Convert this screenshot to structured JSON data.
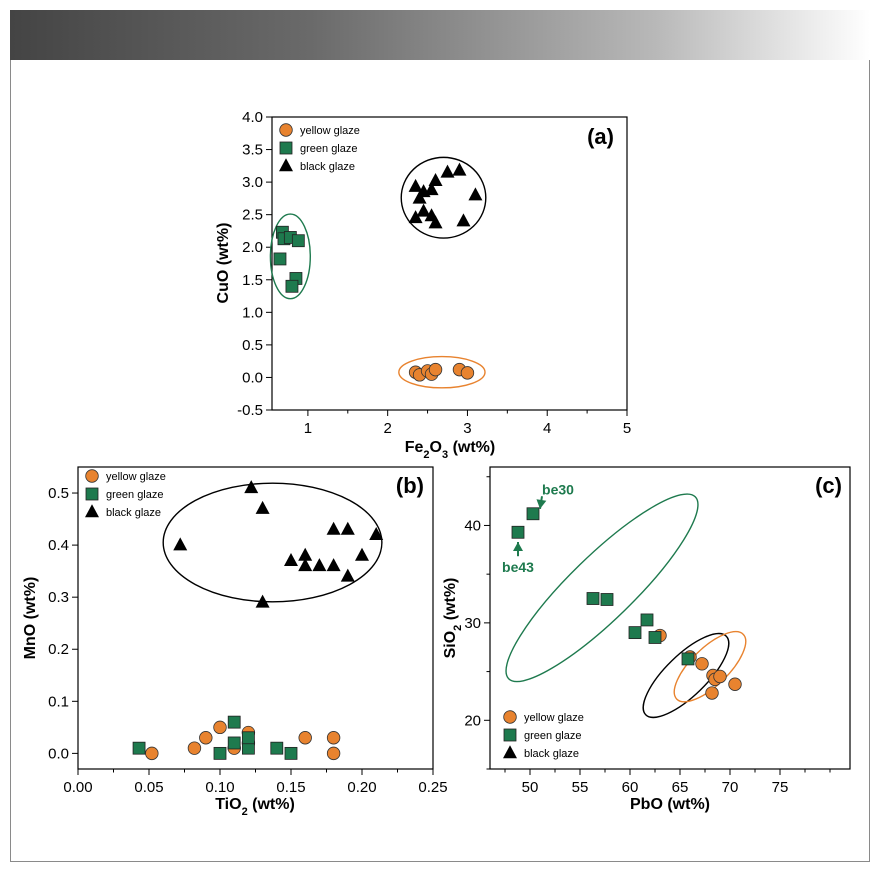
{
  "colors": {
    "yellow": "#e8832f",
    "green": "#1e7a4e",
    "black": "#000000",
    "banner_dark": "#444444"
  },
  "legend": [
    "yellow glaze",
    "green glaze",
    "black glaze"
  ],
  "chart_data": [
    {
      "id": "a",
      "type": "scatter",
      "panel_label": "(a)",
      "xlabel_main": "Fe",
      "xlabel_sub": "2",
      "xlabel_main2": "O",
      "xlabel_sub2": "3",
      "xlabel_tail": " (wt%)",
      "ylabel": "CuO (wt%)",
      "xlim": [
        0.55,
        5.0
      ],
      "ylim": [
        -0.5,
        4.0
      ],
      "xticks": [
        1,
        2,
        3,
        4,
        5
      ],
      "yticks": [
        -0.5,
        0.0,
        0.5,
        1.0,
        1.5,
        2.0,
        2.5,
        3.0,
        3.5,
        4.0
      ],
      "x_minor": 0.5,
      "ytick_decimals": 1,
      "legend_position": "top-left",
      "series": [
        {
          "name": "yellow glaze",
          "marker": "circle",
          "color": "yellow",
          "points": [
            [
              2.35,
              0.08
            ],
            [
              2.4,
              0.04
            ],
            [
              2.5,
              0.1
            ],
            [
              2.55,
              0.05
            ],
            [
              2.6,
              0.12
            ],
            [
              2.9,
              0.12
            ],
            [
              3.0,
              0.07
            ]
          ]
        },
        {
          "name": "green glaze",
          "marker": "square",
          "color": "green",
          "points": [
            [
              0.68,
              2.23
            ],
            [
              0.7,
              2.13
            ],
            [
              0.78,
              2.15
            ],
            [
              0.88,
              2.1
            ],
            [
              0.65,
              1.82
            ],
            [
              0.85,
              1.52
            ],
            [
              0.8,
              1.4
            ]
          ]
        },
        {
          "name": "black glaze",
          "marker": "triangle",
          "color": "black",
          "points": [
            [
              2.35,
              2.93
            ],
            [
              2.45,
              2.85
            ],
            [
              2.6,
              3.02
            ],
            [
              2.75,
              3.15
            ],
            [
              2.9,
              3.18
            ],
            [
              2.55,
              2.88
            ],
            [
              2.4,
              2.75
            ],
            [
              3.1,
              2.8
            ],
            [
              2.35,
              2.45
            ],
            [
              2.45,
              2.55
            ],
            [
              2.55,
              2.48
            ],
            [
              2.6,
              2.37
            ],
            [
              2.95,
              2.4
            ]
          ]
        }
      ],
      "ellipses": [
        {
          "color": "green",
          "cx": 0.78,
          "cy": 1.86,
          "rx": 0.25,
          "ry": 0.65,
          "angle": 0
        },
        {
          "color": "black",
          "cx": 2.7,
          "cy": 2.76,
          "rx": 0.53,
          "ry": 0.62,
          "angle": 0
        },
        {
          "color": "orange",
          "cx": 2.68,
          "cy": 0.08,
          "rx": 0.54,
          "ry": 0.24,
          "angle": 0
        }
      ],
      "annotations": []
    },
    {
      "id": "b",
      "type": "scatter",
      "panel_label": "(b)",
      "xlabel_main": "TiO",
      "xlabel_sub": "2",
      "xlabel_tail": " (wt%)",
      "ylabel": "MnO (wt%)",
      "xlim": [
        0.0,
        0.25
      ],
      "ylim": [
        -0.03,
        0.55
      ],
      "xticks": [
        0.0,
        0.05,
        0.1,
        0.15,
        0.2,
        0.25
      ],
      "yticks": [
        0.0,
        0.1,
        0.2,
        0.3,
        0.4,
        0.5
      ],
      "x_minor": 0.025,
      "xtick_decimals": 2,
      "ytick_decimals": 1,
      "legend_position": "top-left",
      "series": [
        {
          "name": "yellow glaze",
          "marker": "circle",
          "color": "yellow",
          "points": [
            [
              0.052,
              0.0
            ],
            [
              0.082,
              0.01
            ],
            [
              0.09,
              0.03
            ],
            [
              0.1,
              0.05
            ],
            [
              0.11,
              0.01
            ],
            [
              0.12,
              0.04
            ],
            [
              0.12,
              0.02
            ],
            [
              0.16,
              0.03
            ],
            [
              0.18,
              0.03
            ],
            [
              0.18,
              0.0
            ]
          ]
        },
        {
          "name": "green glaze",
          "marker": "square",
          "color": "green",
          "points": [
            [
              0.043,
              0.01
            ],
            [
              0.1,
              0.0
            ],
            [
              0.11,
              0.06
            ],
            [
              0.11,
              0.02
            ],
            [
              0.12,
              0.01
            ],
            [
              0.12,
              0.03
            ],
            [
              0.14,
              0.01
            ],
            [
              0.15,
              0.0
            ]
          ]
        },
        {
          "name": "black glaze",
          "marker": "triangle",
          "color": "black",
          "points": [
            [
              0.072,
              0.4
            ],
            [
              0.122,
              0.51
            ],
            [
              0.13,
              0.47
            ],
            [
              0.13,
              0.29
            ],
            [
              0.15,
              0.37
            ],
            [
              0.16,
              0.38
            ],
            [
              0.16,
              0.36
            ],
            [
              0.17,
              0.36
            ],
            [
              0.18,
              0.36
            ],
            [
              0.18,
              0.43
            ],
            [
              0.19,
              0.43
            ],
            [
              0.19,
              0.34
            ],
            [
              0.2,
              0.38
            ],
            [
              0.21,
              0.42
            ]
          ]
        }
      ],
      "ellipses": [
        {
          "color": "black",
          "cx": 0.137,
          "cy": 0.405,
          "rx": 0.077,
          "ry": 0.114,
          "angle": 0
        }
      ],
      "annotations": []
    },
    {
      "id": "c",
      "type": "scatter",
      "panel_label": "(c)",
      "xlabel_main": "PbO (wt%)",
      "xlabel_sub": "",
      "xlabel_tail": "",
      "ylabel_main": "SiO",
      "ylabel_sub": "2",
      "ylabel_tail": " (wt%)",
      "xlim": [
        46,
        82
      ],
      "ylim": [
        15,
        46
      ],
      "xticks": [
        50,
        55,
        60,
        65,
        70,
        75
      ],
      "yticks": [
        20,
        30,
        40
      ],
      "x_minor": 2.5,
      "y_minor": 5,
      "xtick_decimals": 0,
      "ytick_decimals": 0,
      "legend_position": "bottom-left",
      "series": [
        {
          "name": "yellow glaze",
          "marker": "circle",
          "color": "yellow",
          "points": [
            [
              63.0,
              28.7
            ],
            [
              66.0,
              26.5
            ],
            [
              67.2,
              25.8
            ],
            [
              68.3,
              24.6
            ],
            [
              68.5,
              24.2
            ],
            [
              69.0,
              24.5
            ],
            [
              68.2,
              22.8
            ],
            [
              70.5,
              23.7
            ]
          ]
        },
        {
          "name": "green glaze",
          "marker": "square",
          "color": "green",
          "points": [
            [
              48.8,
              39.3
            ],
            [
              50.3,
              41.2
            ],
            [
              56.3,
              32.5
            ],
            [
              57.7,
              32.4
            ],
            [
              60.5,
              29.0
            ],
            [
              61.7,
              30.3
            ],
            [
              62.5,
              28.5
            ],
            [
              65.8,
              26.3
            ]
          ]
        },
        {
          "name": "black glaze",
          "marker": "triangle",
          "color": "black",
          "points": []
        }
      ],
      "ellipses": [
        {
          "color": "green",
          "cx": 57.2,
          "cy": 33.6,
          "rx": 13.2,
          "ry": 3.6,
          "angle": -45
        },
        {
          "color": "black",
          "cx": 65.6,
          "cy": 24.6,
          "rx": 5.7,
          "ry": 2.3,
          "angle": -45
        },
        {
          "color": "orange",
          "cx": 68.0,
          "cy": 25.5,
          "rx": 4.7,
          "ry": 2.1,
          "angle": -45
        }
      ],
      "annotations": [
        {
          "text": "be30",
          "color": "green",
          "tx": 52.8,
          "ty": 43.2,
          "ax": 51.0,
          "ay": 41.7
        },
        {
          "text": "be43",
          "color": "green",
          "tx": 48.8,
          "ty": 35.2,
          "ax": 48.8,
          "ay": 38.3
        }
      ]
    }
  ]
}
